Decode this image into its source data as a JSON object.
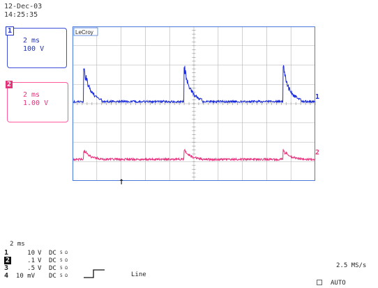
{
  "header": {
    "date": "12-Dec-03",
    "time": "14:25:35"
  },
  "channels": [
    {
      "number": "1",
      "timebase": "2 ms",
      "scale": "100 V",
      "color": "#1a2bdb"
    },
    {
      "number": "2",
      "timebase": "2 ms",
      "scale": "1.00 V",
      "color": "#e8337e"
    }
  ],
  "scope": {
    "brand": "LeCroy",
    "grid_color": "#b0b0b0",
    "frame_color": "#4a78d8"
  },
  "trace_labels": {
    "ch1": "1",
    "ch2": "2"
  },
  "footer": {
    "timebase": "2 ms",
    "rows": [
      {
        "num": "1",
        "value": "10",
        "unit": "V",
        "coupling": "DC",
        "bw": "5 Ω"
      },
      {
        "num": "2",
        "value": ".1",
        "unit": "V",
        "coupling": "DC",
        "bw": "5 Ω"
      },
      {
        "num": "3",
        "value": ".5",
        "unit": "V",
        "coupling": "DC",
        "bw": "5 Ω"
      },
      {
        "num": "4",
        "value": "10 mV",
        "unit": "",
        "coupling": "DC",
        "bw": "5 Ω"
      }
    ],
    "trigger_source": "Line",
    "sample_rate": "2.5 MS/s",
    "trigger_mode": "AUTO"
  }
}
